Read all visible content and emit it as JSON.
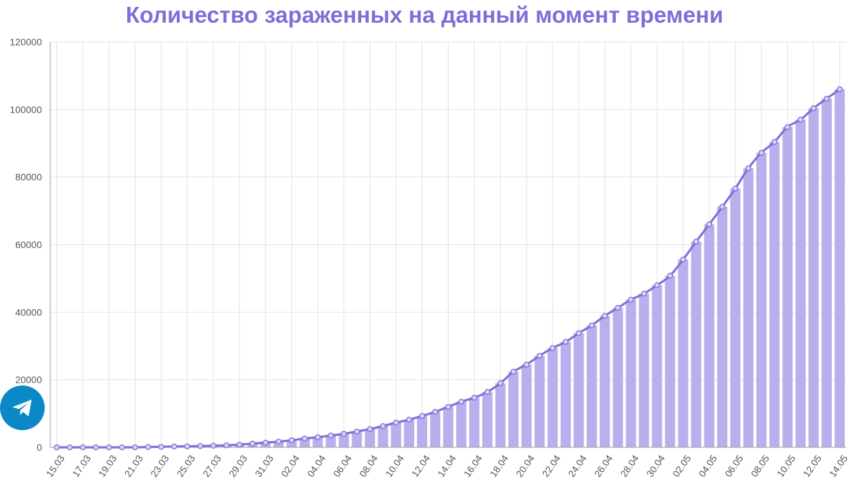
{
  "chart_data": {
    "type": "bar+line",
    "title": "Количество зараженных на данный момент времени",
    "xlabel": "",
    "ylabel": "",
    "ylim": [
      0,
      120000
    ],
    "yticks": [
      0,
      20000,
      40000,
      60000,
      80000,
      100000,
      120000
    ],
    "grid": true,
    "legend": "none",
    "categories": [
      "15.03",
      "16.03",
      "17.03",
      "18.03",
      "19.03",
      "20.03",
      "21.03",
      "22.03",
      "23.03",
      "24.03",
      "25.03",
      "26.03",
      "27.03",
      "28.03",
      "29.03",
      "30.03",
      "31.03",
      "01.04",
      "02.04",
      "03.04",
      "04.04",
      "05.04",
      "06.04",
      "07.04",
      "08.04",
      "09.04",
      "10.04",
      "11.04",
      "12.04",
      "13.04",
      "14.04",
      "15.04",
      "16.04",
      "17.04",
      "18.04",
      "19.04",
      "20.04",
      "21.04",
      "22.04",
      "23.04",
      "24.04",
      "25.04",
      "26.04",
      "27.04",
      "28.04",
      "29.04",
      "30.04",
      "01.05",
      "02.05",
      "03.05",
      "04.05",
      "05.05",
      "06.05",
      "07.05",
      "08.05",
      "09.05",
      "10.05",
      "11.05",
      "12.05",
      "13.05",
      "14.05"
    ],
    "tick_labels_shown": [
      "15.03",
      "17.03",
      "19.03",
      "21.03",
      "23.03",
      "25.03",
      "27.03",
      "29.03",
      "31.03",
      "02.04",
      "04.04",
      "06.04",
      "08.04",
      "10.04",
      "12.04",
      "14.04",
      "16.04",
      "18.04",
      "20.04",
      "22.04",
      "24.04",
      "26.04",
      "28.04",
      "30.04",
      "02.05",
      "04.05",
      "06.05",
      "08.05",
      "10.05",
      "12.05",
      "14.05"
    ],
    "values": [
      0,
      0,
      0,
      0,
      0,
      0,
      0,
      100,
      150,
      250,
      300,
      400,
      500,
      600,
      800,
      1100,
      1400,
      1700,
      2100,
      2600,
      3000,
      3500,
      4000,
      4700,
      5400,
      6300,
      7300,
      8200,
      9300,
      10500,
      12000,
      13500,
      14700,
      16400,
      19000,
      22400,
      24500,
      27100,
      29400,
      31200,
      33800,
      36100,
      38900,
      41300,
      43700,
      45500,
      48000,
      50800,
      55600,
      60900,
      66000,
      71200,
      76600,
      82600,
      87200,
      90400,
      94800,
      97000,
      100400,
      103200,
      106000
    ],
    "colors": {
      "bar": "#b8b0ec",
      "line": "#7e72d6",
      "marker": "#7e72d6",
      "title": "#7c70d8",
      "grid": "#e2e2e2",
      "axis": "#9a9a9a"
    }
  },
  "telegram": {
    "icon": "telegram-icon",
    "color": "#0a88c8"
  }
}
